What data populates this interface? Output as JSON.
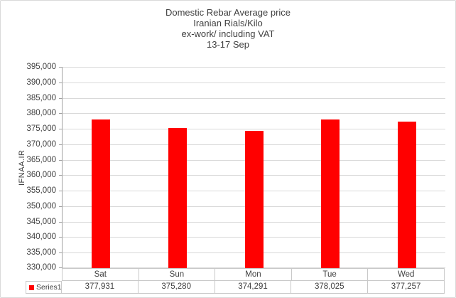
{
  "chart_data": {
    "type": "bar",
    "title_lines": [
      "Domestic Rebar Average price",
      "Iranian Rials/Kilo",
      "ex-work/ including VAT",
      "13-17 Sep"
    ],
    "ylabel": "IFNAA.IR",
    "xlabel": "",
    "categories": [
      "Sat",
      "Sun",
      "Mon",
      "Tue",
      "Wed"
    ],
    "series": [
      {
        "name": "Series1",
        "color": "#FF0000",
        "values": [
          377931,
          375280,
          374291,
          378025,
          377257
        ]
      }
    ],
    "value_labels": [
      "377,931",
      "375,280",
      "374,291",
      "378,025",
      "377,257"
    ],
    "ylim": [
      330000,
      395000
    ],
    "ytick_step": 5000,
    "yticks": [
      "395,000",
      "390,000",
      "385,000",
      "380,000",
      "375,000",
      "370,000",
      "365,000",
      "360,000",
      "355,000",
      "350,000",
      "345,000",
      "340,000",
      "335,000",
      "330,000"
    ],
    "grid": true,
    "legend": {
      "label": "Series1",
      "position": "bottom-table-left"
    },
    "data_table_shown": true
  },
  "colors": {
    "bar": "#FF0000",
    "gridline": "#D9D9D9",
    "axis_line": "#A0A0A0",
    "table_border": "#C9C9C9",
    "text": "#404040",
    "outer_border": "#D9D9D9",
    "background": "#FFFFFF"
  }
}
